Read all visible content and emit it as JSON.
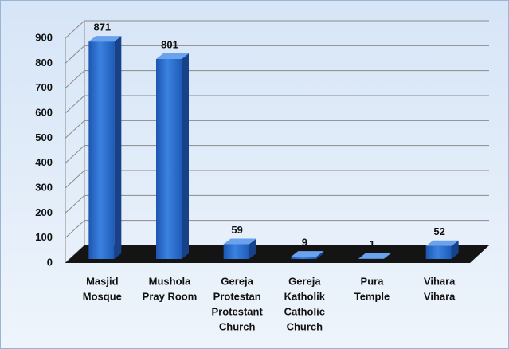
{
  "chart_data": {
    "type": "bar3d",
    "categories": [
      [
        "Masjid",
        "Mosque"
      ],
      [
        "Mushola",
        "Pray Room"
      ],
      [
        "Gereja",
        "Protestan",
        "Protestant",
        "Church"
      ],
      [
        "Gereja",
        "Katholik",
        "Catholic",
        "Church"
      ],
      [
        "Pura",
        "Temple"
      ],
      [
        "Vihara",
        "Vihara"
      ]
    ],
    "values": [
      871,
      801,
      59,
      9,
      1,
      52
    ],
    "color": "#2f6fd0",
    "ylim": [
      0,
      900
    ],
    "yticks": [
      0,
      100,
      200,
      300,
      400,
      500,
      600,
      700,
      800,
      900
    ],
    "grid": true
  }
}
